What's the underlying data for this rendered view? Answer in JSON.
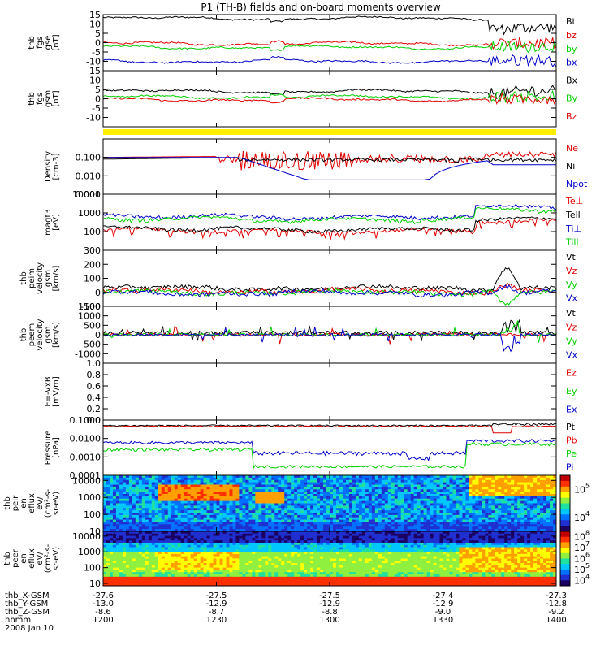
{
  "title": "P1 (TH-B) fields and on-board moments overview",
  "colors": {
    "black": "#000000",
    "red": "#e00000",
    "green": "#00d000",
    "blue": "#0000c8",
    "yellow": "#ffee00"
  },
  "chart_data": [
    {
      "type": "line",
      "name": "fgs_gse",
      "ylabel": [
        "thb",
        "fgs",
        "gse",
        "[nT]"
      ],
      "ylim": [
        -15,
        15
      ],
      "ticks": [
        15,
        10,
        5,
        0,
        -5,
        -10
      ],
      "series": [
        {
          "name": "Bt",
          "color": "black",
          "base": 13
        },
        {
          "name": "bz",
          "color": "red",
          "base": -0.5
        },
        {
          "name": "by",
          "color": "green",
          "base": -2.5
        },
        {
          "name": "bx",
          "color": "blue",
          "base": -10
        }
      ]
    },
    {
      "type": "line",
      "name": "fgs_gsm",
      "ylabel": [
        "thb",
        "fgs",
        "gsm",
        "[nT]"
      ],
      "ylim": [
        -15,
        15
      ],
      "ticks": [
        15,
        10,
        5,
        0,
        -5,
        -10
      ],
      "series": [
        {
          "name": "Bx",
          "color": "black",
          "base": 4
        },
        {
          "name": "By",
          "color": "green",
          "base": 1
        },
        {
          "name": "Bz",
          "color": "red",
          "base": -0.5
        }
      ]
    },
    {
      "type": "bar",
      "name": "mode_bar",
      "color": "yellow"
    },
    {
      "type": "line",
      "name": "density",
      "ylabel": [
        "Density",
        "[cm-3]"
      ],
      "log": true,
      "ylim": [
        0.001,
        1.0
      ],
      "ticks": [
        0.1,
        0.01,
        0.001
      ],
      "tick_labels": [
        "0.100",
        "0.010",
        "0.001"
      ],
      "series": [
        {
          "name": "Ne",
          "color": "red"
        },
        {
          "name": "Ni",
          "color": "black"
        },
        {
          "name": "Npot",
          "color": "blue"
        }
      ]
    },
    {
      "type": "line",
      "name": "temperature",
      "ylabel": [
        "magt3",
        "[eV]"
      ],
      "log": true,
      "ylim": [
        10,
        10000
      ],
      "ticks": [
        10000,
        1000,
        100
      ],
      "tick_labels": [
        "10000",
        "1000",
        "100"
      ],
      "series": [
        {
          "name": "Te⊥",
          "color": "red"
        },
        {
          "name": "Tell",
          "color": "black"
        },
        {
          "name": "Ti⊥",
          "color": "blue"
        },
        {
          "name": "Till",
          "color": "green"
        }
      ]
    },
    {
      "type": "line",
      "name": "peim_velocity",
      "ylabel": [
        "thb",
        "peim",
        "velocity",
        "gsm",
        "[km/s]"
      ],
      "ylim": [
        -100,
        300
      ],
      "ticks": [
        300,
        200,
        100,
        0,
        -100
      ],
      "series": [
        {
          "name": "Vt",
          "color": "black"
        },
        {
          "name": "Vz",
          "color": "red"
        },
        {
          "name": "Vy",
          "color": "green"
        },
        {
          "name": "Vx",
          "color": "blue"
        }
      ]
    },
    {
      "type": "line",
      "name": "peem_velocity",
      "ylabel": [
        "thb",
        "peem",
        "velocity",
        "gsm",
        "[km/s]"
      ],
      "ylim": [
        -1500,
        1500
      ],
      "ticks": [
        1500,
        1000,
        500,
        0,
        -500,
        -1000
      ],
      "series": [
        {
          "name": "Vt",
          "color": "black"
        },
        {
          "name": "Vz",
          "color": "red"
        },
        {
          "name": "Vy",
          "color": "green"
        },
        {
          "name": "Vx",
          "color": "blue"
        }
      ]
    },
    {
      "type": "line",
      "name": "efield",
      "ylabel": [
        "E=-VxB",
        "[mV/m]"
      ],
      "ylim": [
        0,
        1.0
      ],
      "ticks": [
        1.0,
        0.8,
        0.6,
        0.4,
        0.2,
        0.0
      ],
      "tick_labels": [
        "1.0",
        "0.8",
        "0.6",
        "0.4",
        "0.2",
        "0.0"
      ],
      "series": [
        {
          "name": "Ez",
          "color": "red"
        },
        {
          "name": "Ey",
          "color": "green"
        },
        {
          "name": "Ex",
          "color": "blue"
        }
      ]
    },
    {
      "type": "line",
      "name": "pressure",
      "ylabel": [
        "Pressure",
        "[nPa]"
      ],
      "log": true,
      "ylim": [
        0.0001,
        0.1
      ],
      "ticks": [
        0.1,
        0.01,
        0.001,
        0.0001
      ],
      "tick_labels": [
        "0.1000",
        "0.0100",
        "0.0010",
        "0.0001"
      ],
      "series": [
        {
          "name": "Pt",
          "color": "black"
        },
        {
          "name": "Pb",
          "color": "red"
        },
        {
          "name": "Pe",
          "color": "green"
        },
        {
          "name": "Pi",
          "color": "blue"
        }
      ]
    },
    {
      "type": "heatmap",
      "name": "peir_spectrogram",
      "ylabel": [
        "thb",
        "peir",
        "en",
        "eflux",
        "eV/",
        "(cm²-s-",
        "sr-eV)"
      ],
      "log": true,
      "ylim": [
        10,
        20000
      ],
      "ticks": [
        10000,
        1000,
        100,
        10
      ],
      "tick_labels": [
        "10000",
        "1000",
        "100",
        "10"
      ],
      "colorbar": {
        "ticks": [
          {
            "label": "10",
            "exp": "5"
          },
          {
            "label": "10",
            "exp": "4"
          }
        ]
      }
    },
    {
      "type": "heatmap",
      "name": "peer_spectrogram",
      "ylabel": [
        "thb",
        "peer",
        "en",
        "eflux",
        "eV/",
        "(cm²-s-",
        "sr-eV)"
      ],
      "log": true,
      "ylim": [
        7,
        20000
      ],
      "ticks": [
        10000,
        1000,
        100,
        10
      ],
      "tick_labels": [
        "10000",
        "1000",
        "100",
        "10"
      ],
      "colorbar": {
        "ticks": [
          {
            "label": "10",
            "exp": "8"
          },
          {
            "label": "10",
            "exp": "7"
          },
          {
            "label": "10",
            "exp": "6"
          },
          {
            "label": "10",
            "exp": "5"
          },
          {
            "label": "10",
            "exp": "4"
          }
        ]
      }
    }
  ],
  "x_axis": {
    "row_labels": [
      "thb_X-GSM",
      "thb_Y-GSM",
      "thb_Z-GSM",
      "hhmm",
      "2008 Jan 10"
    ],
    "columns": [
      {
        "values": [
          "-27.6",
          "-13.0",
          "-8.6",
          "1200"
        ]
      },
      {
        "values": [
          "-27.5",
          "-12.9",
          "-8.7",
          "1230"
        ]
      },
      {
        "values": [
          "-27.5",
          "-12.9",
          "-8.8",
          "1300"
        ]
      },
      {
        "values": [
          "-27.4",
          "-12.9",
          "-9.0",
          "1330"
        ]
      },
      {
        "values": [
          "-27.3",
          "-12.8",
          "-9.2",
          "1400"
        ]
      }
    ]
  }
}
